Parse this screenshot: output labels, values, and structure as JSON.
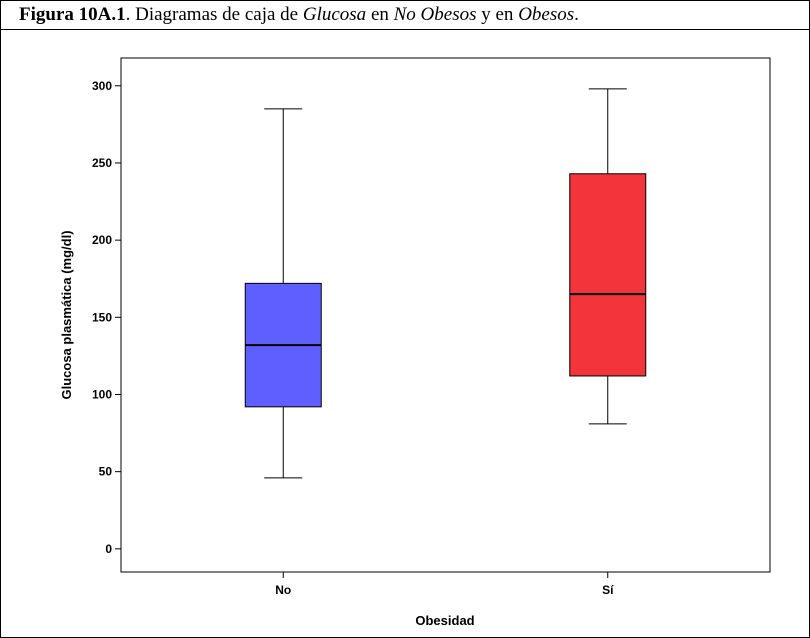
{
  "caption": {
    "label": "Figura 10A.1",
    "t1": ". Diagramas de caja de ",
    "v1": "Glucosa",
    "t2": " en ",
    "v2": "No Obesos",
    "t3": " y en ",
    "v3": "Obesos",
    "t4": "."
  },
  "chart_data": {
    "type": "boxplot",
    "xlabel": "Obesidad",
    "ylabel": "Glucosa plasmática (mg/dl)",
    "ylim": [
      -15,
      318
    ],
    "yticks": [
      0,
      50,
      100,
      150,
      200,
      250,
      300
    ],
    "grid": false,
    "categories": [
      "No",
      "Sí"
    ],
    "boxes": [
      {
        "category": "No",
        "min": 46,
        "q1": 92,
        "median": 132,
        "q3": 172,
        "max": 285,
        "color": "#5f5fff"
      },
      {
        "category": "Sí",
        "min": 81,
        "q1": 112,
        "median": 165,
        "q3": 243,
        "max": 298,
        "color": "#f2353b"
      }
    ]
  }
}
